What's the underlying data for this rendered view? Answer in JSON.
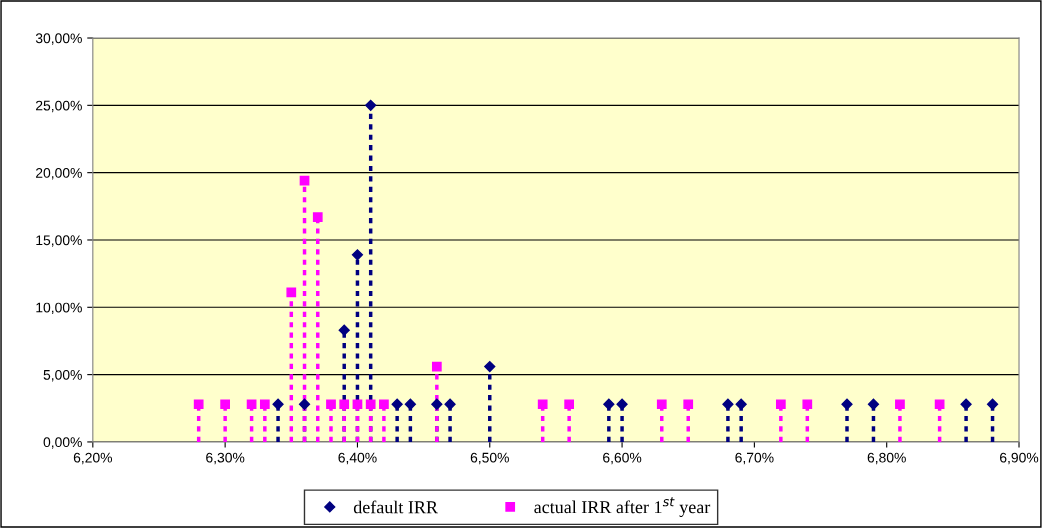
{
  "chart_data": {
    "type": "lollipop",
    "line_style": "dotted",
    "legend": "bottom",
    "grid": "y",
    "xlim": [
      6.2,
      6.9
    ],
    "xticks": [
      {
        "value": 6.2,
        "label": "6,20%"
      },
      {
        "value": 6.3,
        "label": "6,30%"
      },
      {
        "value": 6.4,
        "label": "6,40%"
      },
      {
        "value": 6.5,
        "label": "6,50%"
      },
      {
        "value": 6.6,
        "label": "6,60%"
      },
      {
        "value": 6.7,
        "label": "6,70%"
      },
      {
        "value": 6.8,
        "label": "6,80%"
      },
      {
        "value": 6.9,
        "label": "6,90%"
      }
    ],
    "ylim": [
      0,
      30
    ],
    "yticks": [
      {
        "value": 0,
        "label": "0,00%"
      },
      {
        "value": 5,
        "label": "5,00%"
      },
      {
        "value": 10,
        "label": "10,00%"
      },
      {
        "value": 15,
        "label": "15,00%"
      },
      {
        "value": 20,
        "label": "20,00%"
      },
      {
        "value": 25,
        "label": "25,00%"
      },
      {
        "value": 30,
        "label": "30,00%"
      }
    ],
    "series": [
      {
        "name": "default IRR",
        "color": "#000080",
        "marker": "diamond",
        "x": [
          6.34,
          6.36,
          6.39,
          6.4,
          6.41,
          6.43,
          6.44,
          6.46,
          6.47,
          6.5,
          6.59,
          6.6,
          6.68,
          6.69,
          6.77,
          6.79,
          6.86,
          6.88
        ],
        "values": [
          2.8,
          2.8,
          8.3,
          13.9,
          25,
          2.8,
          2.8,
          2.8,
          2.8,
          5.6,
          2.8,
          2.8,
          2.8,
          2.8,
          2.8,
          2.8,
          2.8,
          2.8
        ]
      },
      {
        "name": "actual IRR after 1$^{st}$ year",
        "color": "#ff00ff",
        "marker": "square",
        "x": [
          6.28,
          6.3,
          6.32,
          6.33,
          6.35,
          6.36,
          6.37,
          6.38,
          6.39,
          6.4,
          6.41,
          6.42,
          6.46,
          6.54,
          6.56,
          6.63,
          6.65,
          6.72,
          6.74,
          6.81,
          6.84
        ],
        "values": [
          2.8,
          2.8,
          2.8,
          2.8,
          11.1,
          19.4,
          16.7,
          2.8,
          2.8,
          2.8,
          2.8,
          2.8,
          5.6,
          2.8,
          2.8,
          2.8,
          2.8,
          2.8,
          2.8,
          2.8,
          2.8
        ]
      }
    ]
  }
}
